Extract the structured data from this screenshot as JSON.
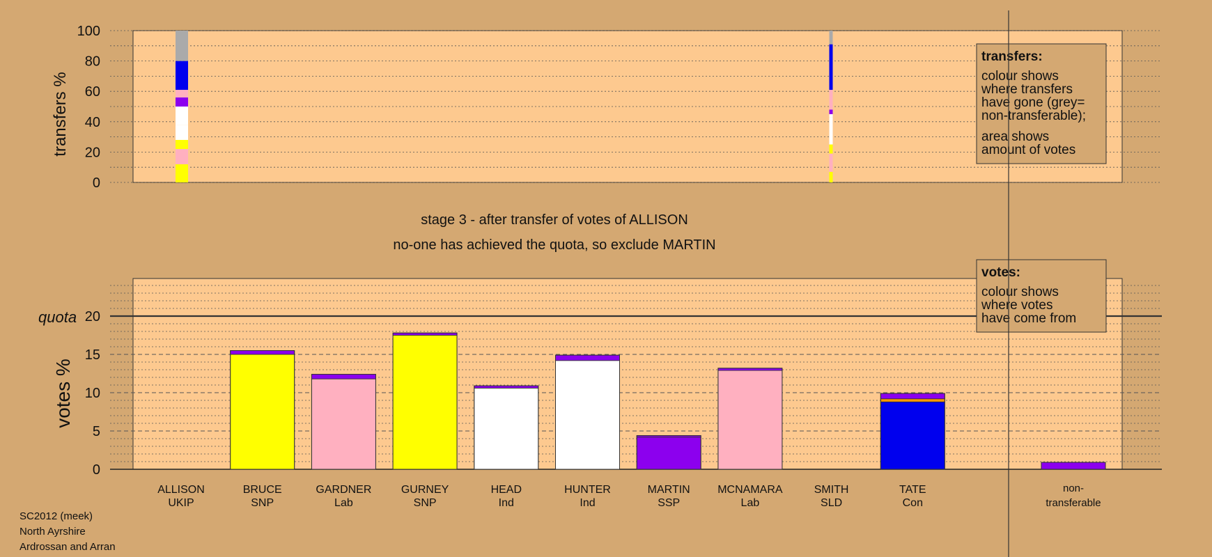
{
  "colors": {
    "background": "#d4a872",
    "panel": "#fdc98f",
    "UKIP": "#ffff00",
    "SNP": "#ffff00",
    "Lab": "#ffb0c0",
    "Ind": "#ffffff",
    "SSP": "#8c00ee",
    "SLD": "#ff9900",
    "Con": "#0000ee",
    "nontransferable": "#aaaaaa"
  },
  "title": {
    "line1": "stage 3 - after transfer of votes of ALLISON",
    "line2": "no-one has achieved the quota, so exclude MARTIN"
  },
  "footer": {
    "line1": "SC2012 (meek)",
    "line2": "North Ayrshire",
    "line3": "Ardrossan and Arran"
  },
  "legend_transfers": {
    "heading": "transfers:",
    "lines": [
      "colour shows",
      "where transfers",
      "have gone (grey=",
      "non-transferable);"
    ],
    "lines2": [
      "area shows",
      "amount of votes"
    ]
  },
  "legend_votes": {
    "heading": "votes:",
    "lines": [
      "colour shows",
      "where votes",
      "have come from"
    ]
  },
  "chart_data": [
    {
      "type": "bar",
      "ylabel": "transfers %",
      "ylim": [
        0,
        100
      ],
      "yticks": [
        "0",
        "20",
        "40",
        "60",
        "80",
        "100"
      ],
      "transfer_columns": [
        {
          "candidate": "ALLISON",
          "segments": [
            {
              "to": "BRUCE",
              "color": "#ffff00",
              "value": 12
            },
            {
              "to": "GARDNER",
              "color": "#ffb0c0",
              "value": 10
            },
            {
              "to": "GURNEY",
              "color": "#ffff00",
              "value": 6
            },
            {
              "to": "HEAD",
              "color": "#ffffff",
              "value": 10
            },
            {
              "to": "HUNTER",
              "color": "#ffffff",
              "value": 12
            },
            {
              "to": "MARTIN",
              "color": "#8c00ee",
              "value": 6
            },
            {
              "to": "MCNAMARA",
              "color": "#ffb0c0",
              "value": 5
            },
            {
              "to": "TATE",
              "color": "#0000ee",
              "value": 19
            },
            {
              "to": "non-transferable",
              "color": "#aaaaaa",
              "value": 20
            }
          ]
        },
        {
          "candidate": "MARTIN",
          "segments": [
            {
              "to": "BRUCE",
              "color": "#ffff00",
              "value": 7
            },
            {
              "to": "GARDNER",
              "color": "#ffb0c0",
              "value": 12
            },
            {
              "to": "GURNEY",
              "color": "#ffff00",
              "value": 6
            },
            {
              "to": "HEAD",
              "color": "#ffffff",
              "value": 18
            },
            {
              "to": "HUNTER",
              "color": "#ffffff",
              "value": 2
            },
            {
              "to": "SSP",
              "color": "#8c00ee",
              "value": 3
            },
            {
              "to": "MCNAMARA",
              "color": "#ffb0c0",
              "value": 13
            },
            {
              "to": "TATE",
              "color": "#0000ee",
              "value": 30
            },
            {
              "to": "non-transferable",
              "color": "#aaaaaa",
              "value": 9
            }
          ]
        }
      ]
    },
    {
      "type": "bar",
      "ylabel": "votes %",
      "ylim": [
        0,
        25
      ],
      "yticks": [
        "0",
        "5",
        "10",
        "15",
        "20"
      ],
      "quota_label": "quota",
      "quota": 20,
      "candidates": [
        {
          "name": "ALLISON",
          "party": "UKIP",
          "segments": []
        },
        {
          "name": "BRUCE",
          "party": "SNP",
          "segments": [
            {
              "color": "#ffff00",
              "value": 15.0
            },
            {
              "color": "#8c00ee",
              "value": 0.5
            }
          ]
        },
        {
          "name": "GARDNER",
          "party": "Lab",
          "segments": [
            {
              "color": "#ffb0c0",
              "value": 11.8
            },
            {
              "color": "#8c00ee",
              "value": 0.6
            }
          ]
        },
        {
          "name": "GURNEY",
          "party": "SNP",
          "segments": [
            {
              "color": "#ffff00",
              "value": 17.5
            },
            {
              "color": "#8c00ee",
              "value": 0.3
            }
          ]
        },
        {
          "name": "HEAD",
          "party": "Ind",
          "segments": [
            {
              "color": "#ffffff",
              "value": 10.6
            },
            {
              "color": "#8c00ee",
              "value": 0.3
            }
          ]
        },
        {
          "name": "HUNTER",
          "party": "Ind",
          "segments": [
            {
              "color": "#ffffff",
              "value": 14.2
            },
            {
              "color": "#8c00ee",
              "value": 0.7
            }
          ]
        },
        {
          "name": "MARTIN",
          "party": "SSP",
          "segments": [
            {
              "color": "#8c00ee",
              "value": 4.2
            },
            {
              "color": "#8c00ee",
              "value": 0.2
            }
          ]
        },
        {
          "name": "MCNAMARA",
          "party": "Lab",
          "segments": [
            {
              "color": "#ffb0c0",
              "value": 12.9
            },
            {
              "color": "#8c00ee",
              "value": 0.3
            }
          ]
        },
        {
          "name": "SMITH",
          "party": "SLD",
          "segments": []
        },
        {
          "name": "TATE",
          "party": "Con",
          "segments": [
            {
              "color": "#0000ee",
              "value": 8.8
            },
            {
              "color": "#ff9900",
              "value": 0.4
            },
            {
              "color": "#8c00ee",
              "value": 0.7
            }
          ]
        }
      ],
      "nontransferable": {
        "label1": "non-",
        "label2": "transferable",
        "segments": [
          {
            "color": "#8c00ee",
            "value": 0.9
          }
        ]
      }
    }
  ]
}
